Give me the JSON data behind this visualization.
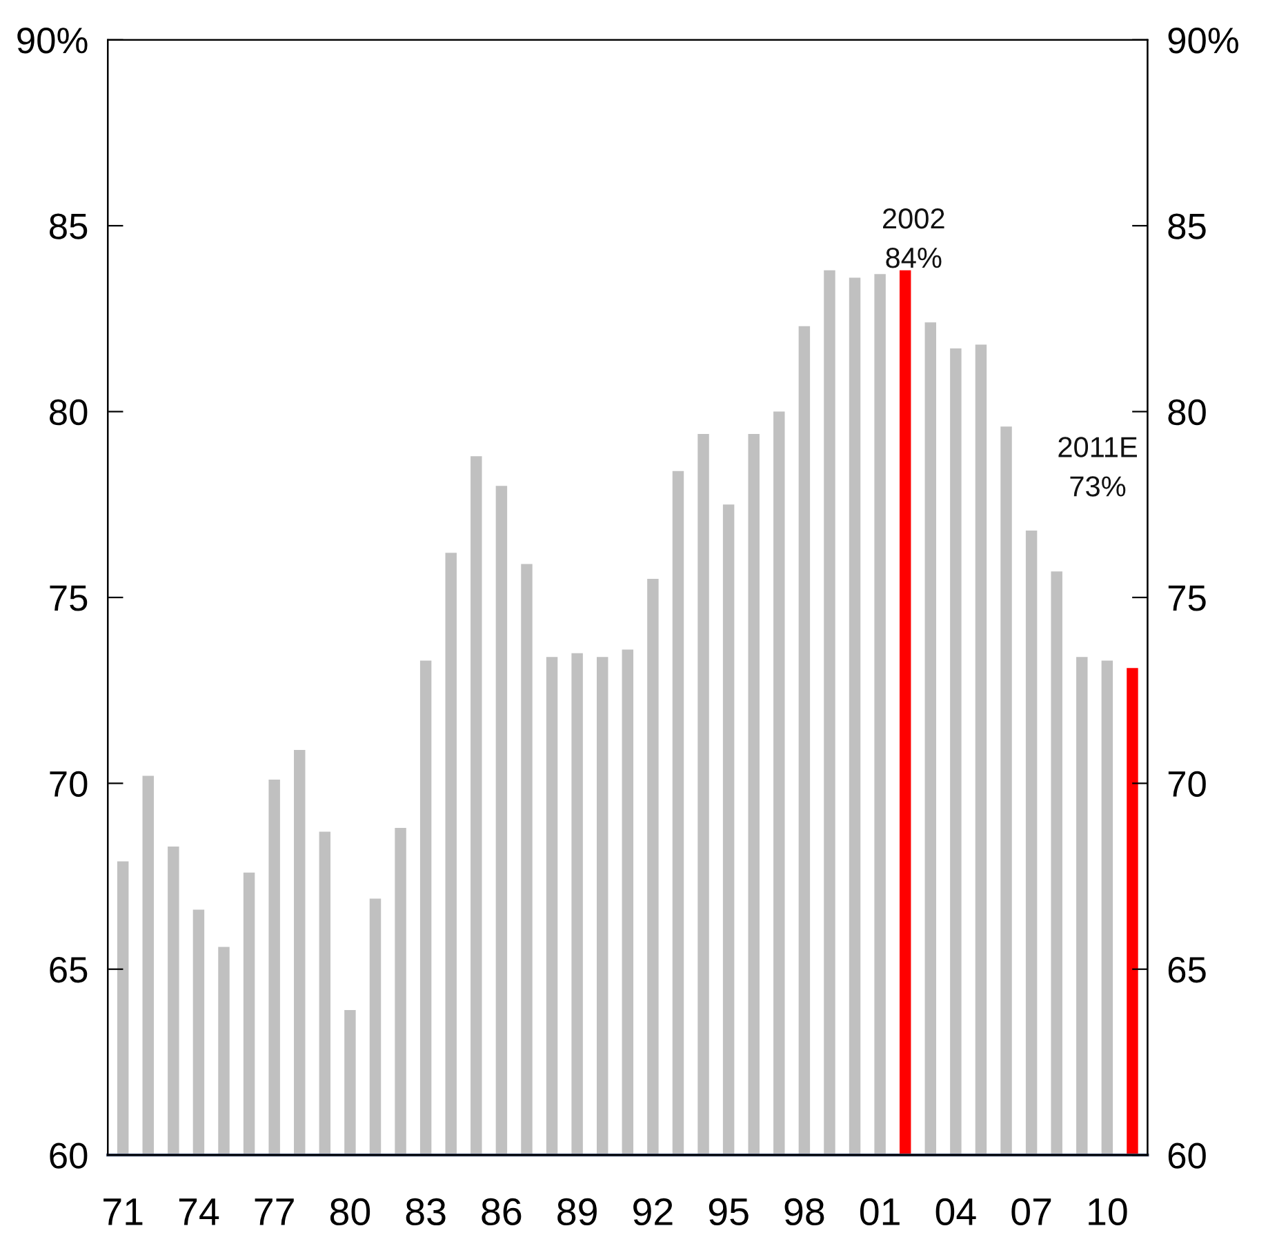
{
  "chart_data": {
    "type": "bar",
    "categories": [
      "71",
      null,
      null,
      "74",
      null,
      null,
      "77",
      null,
      null,
      "80",
      null,
      null,
      "83",
      null,
      null,
      "86",
      null,
      null,
      "89",
      null,
      null,
      "92",
      null,
      null,
      "95",
      null,
      null,
      "98",
      null,
      null,
      "01",
      null,
      null,
      "04",
      null,
      null,
      "07",
      null,
      null,
      "10",
      null
    ],
    "values": [
      67.9,
      70.2,
      68.3,
      66.6,
      65.6,
      67.6,
      70.1,
      70.9,
      68.7,
      63.9,
      66.9,
      68.8,
      73.3,
      76.2,
      78.8,
      78.0,
      75.9,
      73.4,
      73.5,
      73.4,
      73.6,
      75.5,
      78.4,
      79.4,
      77.5,
      79.4,
      80.0,
      82.3,
      83.8,
      83.6,
      83.7,
      83.8,
      82.4,
      81.7,
      81.8,
      79.6,
      76.8,
      75.7,
      73.4,
      73.3,
      73.1
    ],
    "colors": [
      "#c0c0c0",
      "#c0c0c0",
      "#c0c0c0",
      "#c0c0c0",
      "#c0c0c0",
      "#c0c0c0",
      "#c0c0c0",
      "#c0c0c0",
      "#c0c0c0",
      "#c0c0c0",
      "#c0c0c0",
      "#c0c0c0",
      "#c0c0c0",
      "#c0c0c0",
      "#c0c0c0",
      "#c0c0c0",
      "#c0c0c0",
      "#c0c0c0",
      "#c0c0c0",
      "#c0c0c0",
      "#c0c0c0",
      "#c0c0c0",
      "#c0c0c0",
      "#c0c0c0",
      "#c0c0c0",
      "#c0c0c0",
      "#c0c0c0",
      "#c0c0c0",
      "#c0c0c0",
      "#c0c0c0",
      "#c0c0c0",
      "#ff0000",
      "#c0c0c0",
      "#c0c0c0",
      "#c0c0c0",
      "#c0c0c0",
      "#c0c0c0",
      "#c0c0c0",
      "#c0c0c0",
      "#c0c0c0",
      "#ff0000"
    ],
    "ylim": [
      60,
      90
    ],
    "yticks": [
      60,
      65,
      70,
      75,
      80,
      85,
      {
        "value": 90,
        "label": "90%"
      }
    ],
    "y2lim": [
      60,
      90
    ],
    "y2ticks": [
      60,
      65,
      70,
      75,
      80,
      85,
      {
        "value": 90,
        "label": "90%"
      }
    ],
    "annotations": [
      "2002\n84%",
      "2011E\n73%"
    ],
    "grid": false,
    "legend": false
  }
}
